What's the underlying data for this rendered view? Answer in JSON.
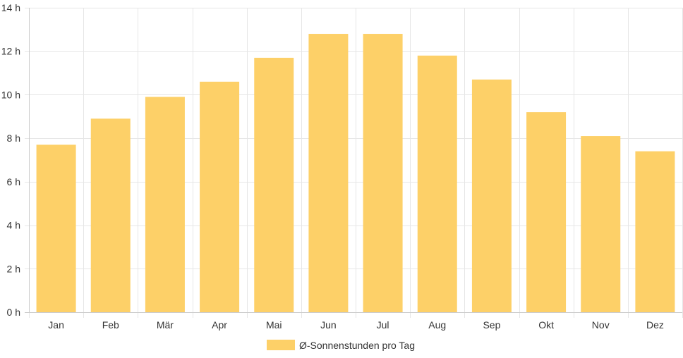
{
  "chart_data": {
    "type": "bar",
    "categories": [
      "Jan",
      "Feb",
      "Mär",
      "Apr",
      "Mai",
      "Jun",
      "Jul",
      "Aug",
      "Sep",
      "Okt",
      "Nov",
      "Dez"
    ],
    "series": [
      {
        "name": "Ø-Sonnenstunden pro Tag",
        "values": [
          7.7,
          8.9,
          9.9,
          10.6,
          11.7,
          12.8,
          12.8,
          11.8,
          10.7,
          9.2,
          8.1,
          7.4
        ]
      }
    ],
    "ylim": [
      0,
      14
    ],
    "yticks": [
      0,
      2,
      4,
      6,
      8,
      10,
      12,
      14
    ],
    "y_unit": "h",
    "grid": true,
    "legend_position": "bottom",
    "bar_color": "#fdd068",
    "grid_color": "#e6e6e6",
    "axis_color": "#cccccc"
  }
}
